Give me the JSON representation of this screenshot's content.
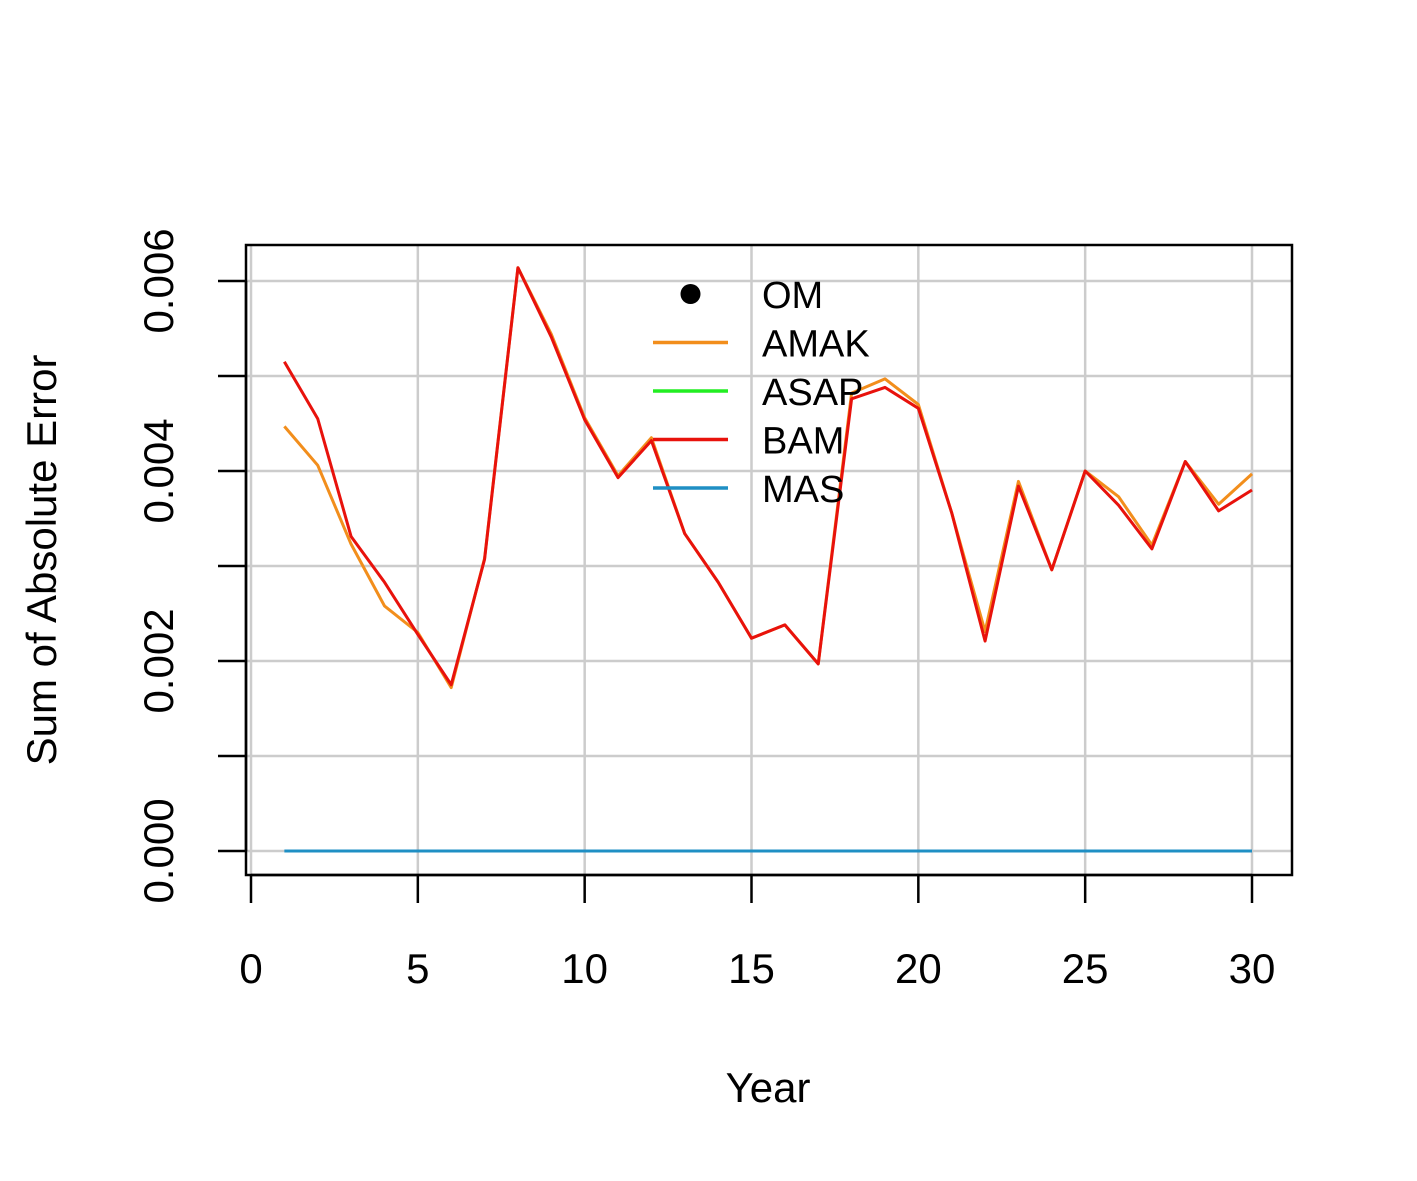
{
  "chart_data": {
    "type": "line",
    "xlabel": "Year",
    "ylabel": "Sum of Absolute Error",
    "xlim": [
      0,
      30
    ],
    "ylim": [
      0,
      0.006
    ],
    "x_ticks": [
      0,
      5,
      10,
      15,
      20,
      25,
      30
    ],
    "y_ticks": [
      0,
      0.001,
      0.002,
      0.003,
      0.004,
      0.005,
      0.006
    ],
    "y_tick_labels": [
      "0.000",
      "0.002",
      "0.004",
      "0.006"
    ],
    "y_tick_label_values": [
      0,
      0.002,
      0.004,
      0.006
    ],
    "grid": true,
    "legend_position": "top-center",
    "x": [
      1,
      2,
      3,
      4,
      5,
      6,
      7,
      8,
      9,
      10,
      11,
      12,
      13,
      14,
      15,
      16,
      17,
      18,
      19,
      20,
      21,
      22,
      23,
      24,
      25,
      26,
      27,
      28,
      29,
      30
    ],
    "legend": [
      {
        "name": "OM",
        "symbol": "point",
        "color": "#000000"
      },
      {
        "name": "AMAK",
        "symbol": "line",
        "color": "#f28e1c"
      },
      {
        "name": "ASAP",
        "symbol": "line",
        "color": "#22ee22"
      },
      {
        "name": "BAM",
        "symbol": "line",
        "color": "#e8120c"
      },
      {
        "name": "MAS",
        "symbol": "line",
        "color": "#1f8fc4"
      }
    ],
    "series": [
      {
        "name": "AMAK",
        "color": "#f28e1c",
        "values": [
          0.00447,
          0.00406,
          0.00323,
          0.00258,
          0.0023,
          0.00172,
          0.00308,
          0.00614,
          0.00544,
          0.00456,
          0.00395,
          0.00435,
          0.00334,
          0.00283,
          0.00224,
          0.00238,
          0.00197,
          0.00482,
          0.00497,
          0.0047,
          0.00356,
          0.00231,
          0.00389,
          0.00296,
          0.004,
          0.00373,
          0.00322,
          0.0041,
          0.00365,
          0.00397
        ]
      },
      {
        "name": "BAM",
        "color": "#e8120c",
        "values": [
          0.00515,
          0.00455,
          0.00331,
          0.00283,
          0.00228,
          0.00175,
          0.00307,
          0.00614,
          0.00541,
          0.00454,
          0.00393,
          0.00432,
          0.00334,
          0.00283,
          0.00224,
          0.00238,
          0.00197,
          0.00476,
          0.00488,
          0.00466,
          0.00356,
          0.00221,
          0.00384,
          0.00296,
          0.004,
          0.00364,
          0.00318,
          0.0041,
          0.00358,
          0.0038
        ]
      },
      {
        "name": "MAS",
        "color": "#1f8fc4",
        "values": [
          0,
          0,
          0,
          0,
          0,
          0,
          0,
          0,
          0,
          0,
          0,
          0,
          0,
          0,
          0,
          0,
          0,
          0,
          0,
          0,
          0,
          0,
          0,
          0,
          0,
          0,
          0,
          0,
          0,
          0
        ]
      }
    ]
  }
}
